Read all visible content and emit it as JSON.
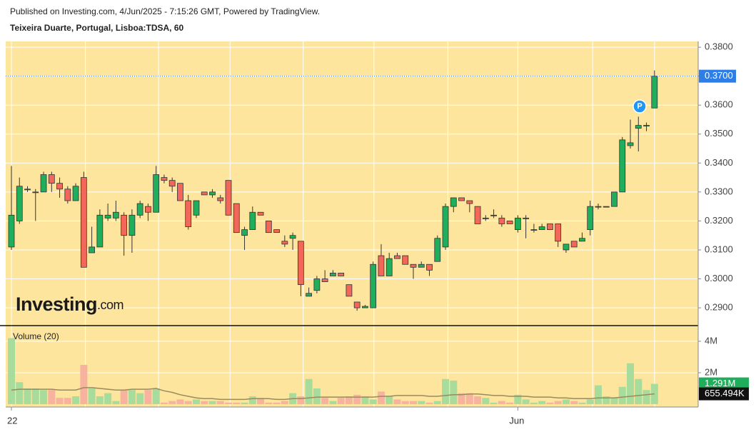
{
  "header": {
    "published": "Published on Investing.com, 4/Jun/2025 - 7:15:26 GMT, Powered by TradingView.",
    "symbol": "Teixeira Duarte, Portugal, Lisboa:TDSA, 60"
  },
  "logo": {
    "text": "Investing",
    "suffix": ".com"
  },
  "chart_data": [
    {
      "type": "candlestick",
      "categories": [
        "22",
        null,
        null,
        null,
        null,
        null,
        null,
        null,
        null,
        null,
        null,
        null,
        null,
        null,
        null,
        null,
        null,
        null,
        null,
        null,
        null,
        null,
        null,
        null,
        null,
        null,
        null,
        null,
        null,
        null,
        null,
        null,
        null,
        null,
        null,
        null,
        null,
        null,
        null,
        null,
        null,
        null,
        null,
        null,
        null,
        null,
        null,
        null,
        null,
        null,
        null,
        null,
        null,
        null,
        null,
        null,
        null,
        null,
        null,
        null,
        null,
        null,
        null,
        "Jun",
        null,
        null,
        null,
        null,
        null,
        null,
        null,
        null,
        null,
        null,
        null,
        null,
        null,
        null,
        null,
        null,
        null
      ],
      "open": [
        0.311,
        0.32,
        0.331,
        0.33,
        0.33,
        0.336,
        0.333,
        0.331,
        0.327,
        0.335,
        0.309,
        0.311,
        0.321,
        0.321,
        0.322,
        0.315,
        0.322,
        0.325,
        0.323,
        0.335,
        0.334,
        0.333,
        0.327,
        0.322,
        0.33,
        0.329,
        0.328,
        0.334,
        0.326,
        0.315,
        0.317,
        0.323,
        0.32,
        0.317,
        0.313,
        0.314,
        0.313,
        0.294,
        0.296,
        0.3,
        0.301,
        0.302,
        0.298,
        0.292,
        0.29,
        0.29,
        0.308,
        0.301,
        0.308,
        0.308,
        0.305,
        0.304,
        0.305,
        0.306,
        0.311,
        0.325,
        0.328,
        0.327,
        0.325,
        0.321,
        0.322,
        0.321,
        0.32,
        0.317,
        0.321,
        0.317,
        0.317,
        0.319,
        0.319,
        0.31,
        0.313,
        0.313,
        0.317,
        0.325,
        0.325,
        0.325,
        0.33,
        0.346,
        0.352,
        0.353,
        0.359
      ],
      "high": [
        0.339,
        0.335,
        0.332,
        0.331,
        0.337,
        0.337,
        0.335,
        0.332,
        0.333,
        0.337,
        0.318,
        0.324,
        0.326,
        0.327,
        0.323,
        0.324,
        0.327,
        0.326,
        0.339,
        0.336,
        0.335,
        0.333,
        0.329,
        0.327,
        0.33,
        0.331,
        0.329,
        0.334,
        0.326,
        0.318,
        0.325,
        0.323,
        0.32,
        0.317,
        0.315,
        0.316,
        0.313,
        0.297,
        0.301,
        0.303,
        0.303,
        0.302,
        0.298,
        0.292,
        0.291,
        0.306,
        0.312,
        0.309,
        0.309,
        0.308,
        0.305,
        0.306,
        0.305,
        0.315,
        0.326,
        0.328,
        0.328,
        0.327,
        0.325,
        0.322,
        0.324,
        0.322,
        0.32,
        0.322,
        0.322,
        0.319,
        0.319,
        0.319,
        0.319,
        0.312,
        0.313,
        0.316,
        0.327,
        0.326,
        0.325,
        0.33,
        0.349,
        0.355,
        0.356,
        0.354,
        0.372
      ],
      "low": [
        0.31,
        0.319,
        0.33,
        0.32,
        0.33,
        0.33,
        0.328,
        0.326,
        0.327,
        0.304,
        0.309,
        0.311,
        0.32,
        0.32,
        0.308,
        0.309,
        0.321,
        0.32,
        0.323,
        0.333,
        0.33,
        0.327,
        0.317,
        0.321,
        0.329,
        0.328,
        0.326,
        0.322,
        0.316,
        0.31,
        0.317,
        0.322,
        0.316,
        0.316,
        0.311,
        0.31,
        0.294,
        0.294,
        0.295,
        0.299,
        0.301,
        0.301,
        0.294,
        0.289,
        0.29,
        0.29,
        0.301,
        0.301,
        0.307,
        0.305,
        0.3,
        0.304,
        0.301,
        0.306,
        0.31,
        0.323,
        0.327,
        0.323,
        0.319,
        0.32,
        0.321,
        0.318,
        0.319,
        0.316,
        0.314,
        0.316,
        0.317,
        0.317,
        0.311,
        0.309,
        0.311,
        0.313,
        0.315,
        0.324,
        0.325,
        0.325,
        0.33,
        0.345,
        0.344,
        0.351,
        0.359
      ],
      "close": [
        0.322,
        0.332,
        0.331,
        0.33,
        0.336,
        0.333,
        0.331,
        0.327,
        0.332,
        0.304,
        0.311,
        0.322,
        0.322,
        0.323,
        0.315,
        0.322,
        0.326,
        0.323,
        0.336,
        0.334,
        0.332,
        0.327,
        0.318,
        0.327,
        0.329,
        0.33,
        0.327,
        0.322,
        0.316,
        0.317,
        0.323,
        0.322,
        0.316,
        0.316,
        0.312,
        0.315,
        0.298,
        0.295,
        0.3,
        0.299,
        0.302,
        0.301,
        0.294,
        0.29,
        0.2905,
        0.305,
        0.301,
        0.307,
        0.307,
        0.305,
        0.304,
        0.305,
        0.303,
        0.314,
        0.325,
        0.328,
        0.327,
        0.326,
        0.319,
        0.321,
        0.322,
        0.319,
        0.319,
        0.321,
        0.321,
        0.317,
        0.318,
        0.317,
        0.313,
        0.312,
        0.311,
        0.314,
        0.325,
        0.325,
        0.325,
        0.33,
        0.348,
        0.347,
        0.353,
        0.353,
        0.37
      ],
      "up_color": "#1fae5c",
      "down_color": "#f2675a",
      "ylim": [
        0.2841,
        0.382
      ],
      "yticks": [
        {
          "value": 0.29,
          "label": "0.2900"
        },
        {
          "value": 0.3,
          "label": "0.3000"
        },
        {
          "value": 0.31,
          "label": "0.3100"
        },
        {
          "value": 0.32,
          "label": "0.3200"
        },
        {
          "value": 0.33,
          "label": "0.3300"
        },
        {
          "value": 0.34,
          "label": "0.3400"
        },
        {
          "value": 0.35,
          "label": "0.3500"
        },
        {
          "value": 0.36,
          "label": "0.3600"
        },
        {
          "value": 0.37,
          "label": "0.3700"
        },
        {
          "value": 0.38,
          "label": "0.3800"
        }
      ],
      "last_price": {
        "value": 0.37,
        "label": "0.3700",
        "color": "#2e7ee6"
      },
      "marker": "P",
      "grid": true
    },
    {
      "type": "bar",
      "title": "Volume (20)",
      "series": [
        {
          "up_color": "#a8dc9c",
          "down_color": "#f8b3a0",
          "values": [
            4.2,
            1.4,
            1.0,
            1.0,
            0.9,
            0.9,
            0.4,
            0.4,
            0.5,
            2.5,
            1.0,
            0.5,
            0.7,
            0.2,
            0.9,
            0.9,
            0.7,
            0.9,
            1.0,
            0.1,
            0.2,
            0.3,
            0.2,
            0.3,
            0.2,
            0.2,
            0.2,
            0.1,
            0.1,
            0.1,
            0.5,
            0.4,
            0.1,
            0.1,
            0.2,
            0.7,
            0.5,
            1.6,
            1.0,
            0.4,
            0.2,
            0.4,
            0.5,
            0.6,
            0.5,
            0.3,
            0.8,
            0.5,
            0.3,
            0.2,
            0.2,
            0.2,
            0.1,
            0.2,
            1.6,
            1.5,
            0.7,
            0.7,
            0.5,
            0.4,
            0.1,
            0.2,
            0.1,
            0.6,
            0.3,
            0.1,
            0.2,
            0.1,
            0.2,
            0.3,
            0.2,
            0.1,
            0.3,
            1.2,
            0.5,
            0.4,
            1.1,
            2.6,
            1.6,
            0.9,
            1.291
          ]
        },
        {
          "type": "line",
          "color": "#9a8a5e",
          "values": [
            0.9,
            0.95,
            0.95,
            0.95,
            0.95,
            0.95,
            0.9,
            0.9,
            0.9,
            1.05,
            1.05,
            1.0,
            0.95,
            0.9,
            0.9,
            0.95,
            0.95,
            0.95,
            1.0,
            0.85,
            0.75,
            0.6,
            0.5,
            0.4,
            0.35,
            0.35,
            0.3,
            0.3,
            0.3,
            0.3,
            0.35,
            0.35,
            0.35,
            0.3,
            0.3,
            0.35,
            0.35,
            0.4,
            0.45,
            0.45,
            0.45,
            0.45,
            0.45,
            0.45,
            0.45,
            0.45,
            0.5,
            0.5,
            0.55,
            0.55,
            0.55,
            0.55,
            0.5,
            0.5,
            0.55,
            0.6,
            0.6,
            0.65,
            0.65,
            0.6,
            0.55,
            0.55,
            0.5,
            0.5,
            0.5,
            0.45,
            0.45,
            0.45,
            0.4,
            0.4,
            0.35,
            0.35,
            0.35,
            0.4,
            0.4,
            0.4,
            0.45,
            0.5,
            0.55,
            0.6,
            0.655494
          ]
        }
      ],
      "current_labels": [
        {
          "value": 1.291,
          "label": "1.291M",
          "color": "#1fae5c"
        },
        {
          "value": 0.655494,
          "label": "655.494K",
          "color": "#111111"
        }
      ],
      "ylim": [
        -0.18,
        4.95
      ],
      "yticks": [
        {
          "value": 2,
          "label": "2M"
        },
        {
          "value": 4,
          "label": "4M"
        }
      ],
      "grid": true
    }
  ]
}
